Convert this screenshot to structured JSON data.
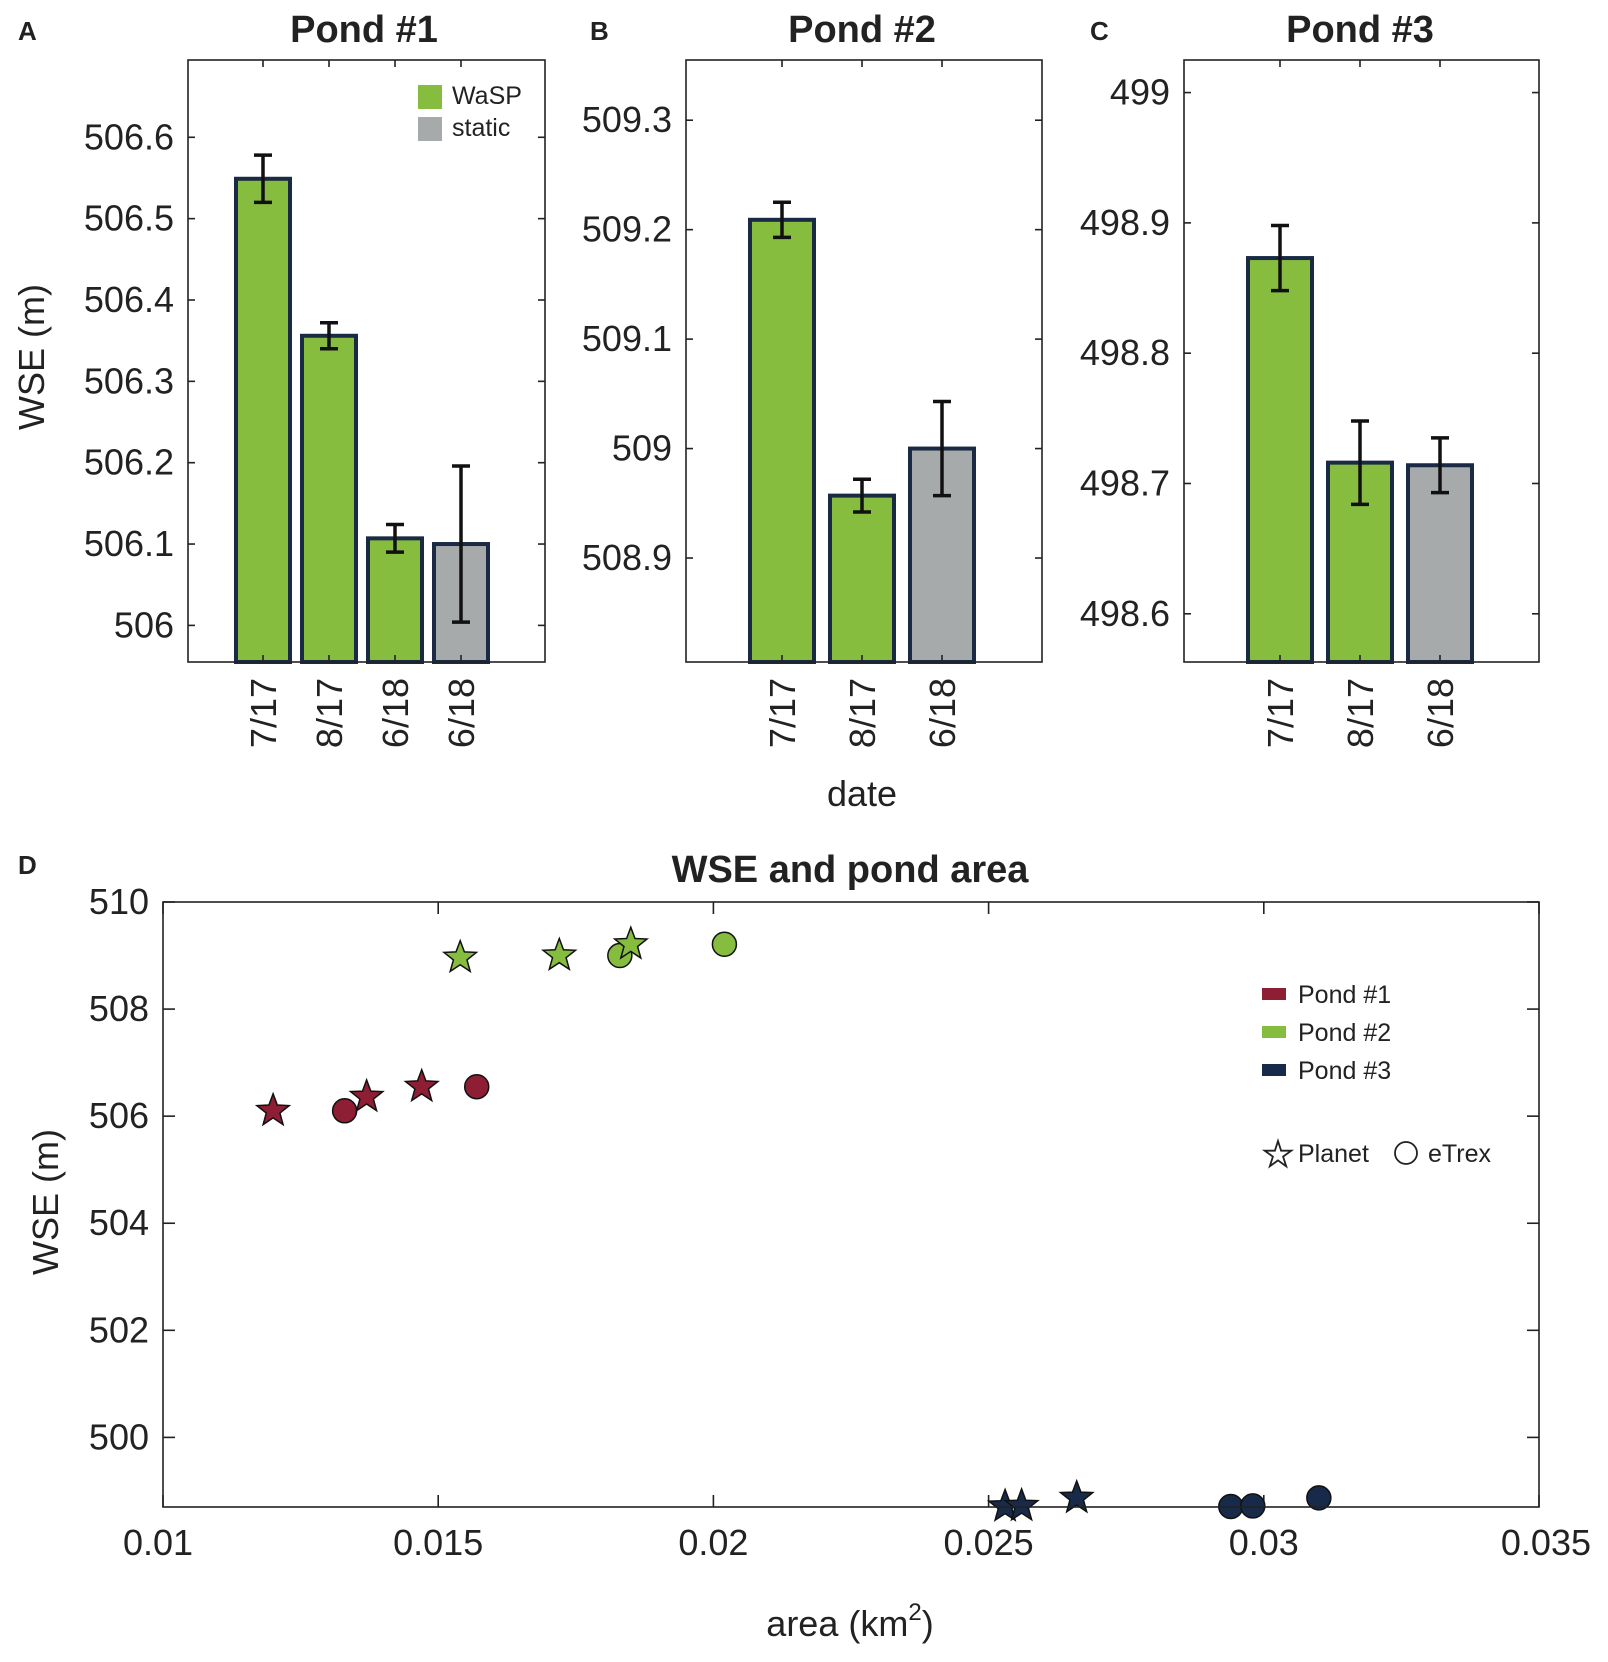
{
  "chart_data": [
    {
      "panel": "A",
      "type": "bar",
      "title": "Pond #1",
      "ylabel": "WSE (m)",
      "xlabel": "",
      "ylim": [
        505.955,
        506.695
      ],
      "yticks": [
        506,
        506.1,
        506.2,
        506.3,
        506.4,
        506.5,
        506.6
      ],
      "ytick_labels": [
        "506",
        "506.1",
        "506.2",
        "506.3",
        "506.4",
        "506.5",
        "506.6"
      ],
      "categories": [
        "7/17",
        "8/17",
        "6/18",
        "6/18"
      ],
      "values": [
        506.549,
        506.356,
        506.107,
        506.1
      ],
      "errors": [
        0.029,
        0.016,
        0.017,
        0.096
      ],
      "bar_types": [
        "wasp",
        "wasp",
        "wasp",
        "static"
      ],
      "legend": [
        {
          "key": "wasp",
          "label": "WaSP"
        },
        {
          "key": "static",
          "label": "static"
        }
      ]
    },
    {
      "panel": "B",
      "type": "bar",
      "title": "Pond #2",
      "ylabel": "",
      "xlabel": "date",
      "ylim": [
        508.805,
        509.355
      ],
      "yticks": [
        508.9,
        509,
        509.1,
        509.2,
        509.3
      ],
      "ytick_labels": [
        "508.9",
        "509",
        "509.1",
        "509.2",
        "509.3"
      ],
      "categories": [
        "7/17",
        "8/17",
        "6/18"
      ],
      "values": [
        509.209,
        508.957,
        509.0
      ],
      "errors": [
        0.016,
        0.015,
        0.043
      ],
      "bar_types": [
        "wasp",
        "wasp",
        "static"
      ]
    },
    {
      "panel": "C",
      "type": "bar",
      "title": "Pond #3",
      "ylabel": "",
      "xlabel": "",
      "ylim": [
        498.563,
        499.025
      ],
      "yticks": [
        498.6,
        498.7,
        498.8,
        498.9,
        499
      ],
      "ytick_labels": [
        "498.6",
        "498.7",
        "498.8",
        "498.9",
        "499"
      ],
      "categories": [
        "7/17",
        "8/17",
        "6/18"
      ],
      "values": [
        498.873,
        498.716,
        498.714
      ],
      "errors": [
        0.025,
        0.032,
        0.021
      ],
      "bar_types": [
        "wasp",
        "wasp",
        "static"
      ]
    },
    {
      "panel": "D",
      "type": "scatter",
      "title": "WSE and pond area",
      "xlabel_main": "area (km",
      "xlabel_sup": "2",
      "xlabel_end": ")",
      "ylabel": "WSE (m)",
      "xlim": [
        0.01,
        0.035
      ],
      "ylim": [
        498.7,
        510
      ],
      "xticks": [
        0.01,
        0.015,
        0.02,
        0.025,
        0.03,
        0.035
      ],
      "xtick_labels": [
        "0.01",
        "0.015",
        "0.02",
        "0.025",
        "0.03",
        "0.035"
      ],
      "yticks": [
        500,
        502,
        504,
        506,
        508,
        510
      ],
      "ytick_labels": [
        "500",
        "502",
        "504",
        "506",
        "508",
        "510"
      ],
      "series": [
        {
          "name": "Pond #1",
          "color_key": "pond1",
          "planet": [
            [
              0.012,
              506.1
            ],
            [
              0.0137,
              506.36
            ],
            [
              0.0147,
              506.55
            ]
          ],
          "etrex": [
            [
              0.0133,
              506.1
            ],
            [
              0.0157,
              506.55
            ]
          ]
        },
        {
          "name": "Pond #2",
          "color_key": "pond2",
          "planet": [
            [
              0.0154,
              508.96
            ],
            [
              0.0172,
              509.0
            ],
            [
              0.0185,
              509.21
            ]
          ],
          "etrex": [
            [
              0.0183,
              509.0
            ],
            [
              0.0202,
              509.21
            ]
          ]
        },
        {
          "name": "Pond #3",
          "color_key": "pond3",
          "planet": [
            [
              0.0253,
              498.71
            ],
            [
              0.0256,
              498.72
            ],
            [
              0.0266,
              498.87
            ]
          ],
          "etrex": [
            [
              0.0294,
              498.71
            ],
            [
              0.0298,
              498.72
            ],
            [
              0.031,
              498.87
            ]
          ]
        }
      ],
      "marker_legend": [
        {
          "marker": "star",
          "label": "Planet"
        },
        {
          "marker": "circle",
          "label": "eTrex"
        }
      ]
    }
  ],
  "colors": {
    "wasp": "#86bd3e",
    "static": "#a7aaab",
    "bar_edge": "#1a2a44",
    "pond1": "#8e1e33",
    "pond2": "#86bd3e",
    "pond3": "#182a4a",
    "error_bar": "#111111"
  }
}
